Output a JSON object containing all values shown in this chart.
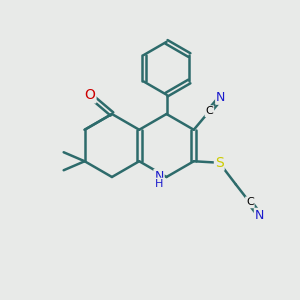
{
  "bg_color": "#e8eae8",
  "bond_color": "#2d6b6b",
  "bond_width": 1.8,
  "atom_colors": {
    "O": "#cc0000",
    "N": "#1a1acc",
    "S": "#cccc00",
    "C": "#000000",
    "H": "#1a1acc"
  },
  "font_size": 9,
  "fig_size": [
    3.0,
    3.0
  ],
  "dpi": 100
}
